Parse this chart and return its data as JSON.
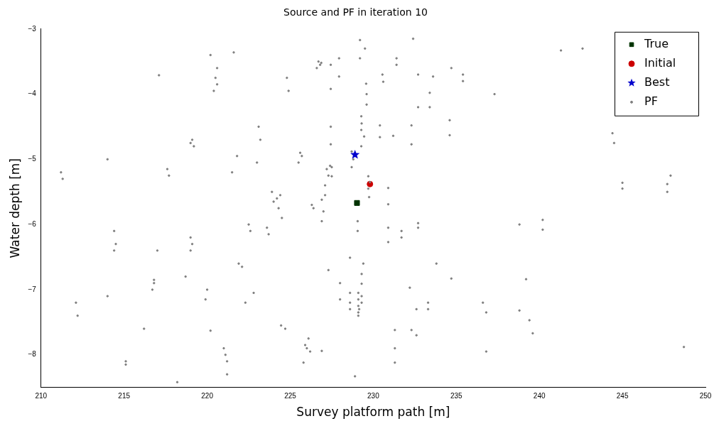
{
  "chart_data": {
    "type": "scatter",
    "title": "Source and PF in iteration 10",
    "xlabel": "Survey platform path [m]",
    "ylabel": "Water depth [m]",
    "xlim": [
      210,
      250
    ],
    "xticks": [
      210,
      215,
      220,
      225,
      230,
      235,
      240,
      245,
      250
    ],
    "ylim": [
      -8.5,
      -3
    ],
    "yticks": [
      -8,
      -7,
      -6,
      -5,
      -4,
      -3
    ],
    "grid": false,
    "legend": "top right",
    "series": [
      {
        "name": "True",
        "color": "#003300",
        "marker": "square",
        "x": [
          229.02
        ],
        "values": [
          -5.67
        ]
      },
      {
        "name": "Initial",
        "color": "#cc0000",
        "marker": "circle",
        "x": [
          229.8
        ],
        "values": [
          -5.38
        ]
      },
      {
        "name": "Best",
        "color": "#0000cc",
        "marker": "star",
        "x": [
          228.9
        ],
        "values": [
          -4.93
        ]
      },
      {
        "name": "PF",
        "color": "#808080",
        "marker": "circle",
        "x": [
          211.2,
          211.3,
          212.1,
          212.2,
          214.0,
          214.4,
          214.5,
          214.4,
          214.0,
          215.1,
          215.1,
          216.2,
          216.8,
          216.8,
          216.7,
          217.0,
          217.1,
          217.6,
          217.7,
          218.2,
          218.7,
          219.1,
          219.2,
          219.0,
          219.0,
          219.1,
          219.0,
          219.9,
          220.0,
          220.2,
          220.2,
          220.4,
          220.5,
          220.6,
          220.6,
          221.0,
          221.1,
          221.2,
          221.2,
          221.5,
          221.6,
          221.8,
          221.9,
          222.1,
          222.3,
          222.5,
          222.6,
          222.8,
          223.0,
          223.1,
          223.2,
          223.6,
          223.7,
          223.9,
          224.0,
          224.2,
          224.3,
          224.4,
          224.45,
          224.5,
          224.7,
          224.8,
          224.9,
          225.5,
          225.6,
          225.7,
          225.8,
          225.9,
          226.0,
          226.1,
          226.2,
          226.3,
          226.4,
          226.6,
          226.7,
          226.8,
          226.87,
          226.9,
          226.9,
          226.9,
          227.0,
          227.1,
          227.1,
          227.2,
          227.3,
          227.3,
          227.4,
          227.44,
          227.44,
          227.44,
          227.44,
          227.5,
          227.5,
          227.94,
          227.94,
          228.0,
          228.0,
          228.6,
          228.6,
          228.6,
          228.6,
          228.7,
          228.7,
          228.8,
          228.9,
          229.06,
          229.06,
          229.1,
          229.1,
          229.1,
          229.1,
          229.1,
          229.15,
          229.2,
          229.2,
          229.28,
          229.28,
          229.28,
          229.3,
          229.3,
          229.3,
          229.3,
          229.3,
          229.4,
          229.45,
          229.5,
          229.57,
          229.6,
          229.6,
          229.7,
          229.7,
          229.75,
          229.8,
          230.4,
          230.4,
          230.55,
          230.6,
          230.9,
          230.9,
          230.9,
          230.9,
          231.2,
          231.3,
          231.3,
          231.3,
          231.4,
          231.4,
          231.7,
          231.7,
          232.2,
          232.3,
          232.3,
          232.3,
          232.4,
          232.6,
          232.6,
          232.7,
          232.7,
          232.7,
          232.7,
          233.3,
          233.3,
          233.4,
          233.4,
          233.6,
          233.8,
          234.6,
          234.6,
          234.7,
          234.7,
          235.4,
          235.4,
          236.6,
          236.8,
          236.8,
          237.3,
          238.8,
          238.8,
          239.2,
          239.4,
          239.6,
          240.2,
          240.2,
          241.3,
          242.6,
          244.4,
          244.5,
          245.0,
          245.0,
          247.7,
          247.7,
          247.9,
          248.7
        ],
        "values": [
          -5.2,
          -5.3,
          -7.2,
          -7.4,
          -5.0,
          -6.1,
          -6.3,
          -6.4,
          -7.1,
          -8.1,
          -8.15,
          -7.6,
          -6.85,
          -6.9,
          -7.0,
          -6.4,
          -3.71,
          -5.15,
          -5.25,
          -8.42,
          -6.8,
          -4.7,
          -4.8,
          -4.75,
          -6.2,
          -6.3,
          -6.4,
          -7.15,
          -7.0,
          -7.63,
          -3.4,
          -3.95,
          -3.75,
          -3.6,
          -3.85,
          -7.9,
          -8.0,
          -8.1,
          -8.3,
          -5.2,
          -3.36,
          -4.95,
          -6.6,
          -6.65,
          -7.2,
          -6.0,
          -6.1,
          -7.05,
          -5.05,
          -4.5,
          -4.7,
          -6.05,
          -6.15,
          -5.5,
          -5.65,
          -5.6,
          -5.75,
          -5.55,
          -7.55,
          -5.9,
          -7.6,
          -3.75,
          -3.95,
          -5.05,
          -4.9,
          -4.95,
          -8.12,
          -7.85,
          -7.9,
          -7.75,
          -7.95,
          -5.7,
          -5.75,
          -3.6,
          -3.5,
          -3.55,
          -3.52,
          -5.62,
          -5.95,
          -7.94,
          -5.8,
          -5.4,
          -5.55,
          -5.15,
          -5.25,
          -6.7,
          -5.1,
          -3.55,
          -3.92,
          -4.5,
          -4.77,
          -5.12,
          -5.26,
          -3.45,
          -3.73,
          -6.9,
          -7.15,
          -6.51,
          -7.05,
          -7.2,
          -7.3,
          -4.88,
          -5.12,
          -5.0,
          -8.33,
          -5.95,
          -6.1,
          -7.05,
          -7.15,
          -7.25,
          -7.35,
          -7.4,
          -7.3,
          -3.17,
          -3.45,
          -4.34,
          -4.55,
          -4.8,
          -6.76,
          -6.91,
          -7.1,
          -7.2,
          -4.45,
          -6.6,
          -4.65,
          -3.3,
          -3.84,
          -4.0,
          -4.16,
          -5.26,
          -5.45,
          -5.58,
          -5.35,
          -4.48,
          -4.66,
          -3.7,
          -3.81,
          -5.44,
          -5.69,
          -6.05,
          -6.27,
          -4.64,
          -7.62,
          -7.9,
          -8.12,
          -3.45,
          -3.55,
          -6.1,
          -6.2,
          -6.97,
          -4.48,
          -4.77,
          -7.62,
          -3.15,
          -7.3,
          -7.7,
          -3.7,
          -4.2,
          -5.98,
          -6.05,
          -7.2,
          -7.3,
          -3.98,
          -4.2,
          -3.73,
          -6.6,
          -4.4,
          -4.63,
          -3.6,
          -6.83,
          -3.8,
          -3.7,
          -7.2,
          -7.35,
          -7.95,
          -4.0,
          -7.32,
          -6.0,
          -6.84,
          -7.47,
          -7.67,
          -5.93,
          -6.08,
          -3.33,
          -3.3,
          -4.6,
          -4.75,
          -5.36,
          -5.45,
          -5.38,
          -5.5,
          -5.25,
          -7.88
        ]
      }
    ]
  }
}
